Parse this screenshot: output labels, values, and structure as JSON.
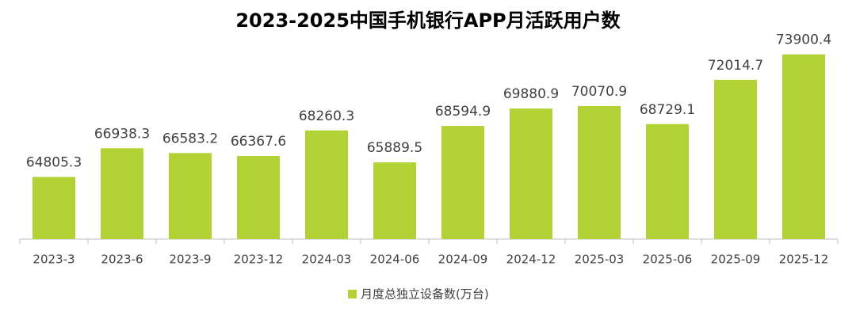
{
  "chart_data": {
    "type": "bar",
    "title": "2023-2025中国手机银行APP月活跃用户数",
    "categories": [
      "2023-3",
      "2023-6",
      "2023-9",
      "2023-12",
      "2024-03",
      "2024-06",
      "2024-09",
      "2024-12",
      "2025-03",
      "2025-06",
      "2025-09",
      "2025-12"
    ],
    "series": [
      {
        "name": "月度总独立设备数(万台)",
        "color": "#b2d235",
        "values": [
          64805.3,
          66938.3,
          66583.2,
          66367.6,
          68260.3,
          65889.5,
          68594.9,
          69880.9,
          70070.9,
          68729.1,
          72014.7,
          73900.4
        ]
      }
    ],
    "ylim": [
      60200,
      75000
    ]
  }
}
